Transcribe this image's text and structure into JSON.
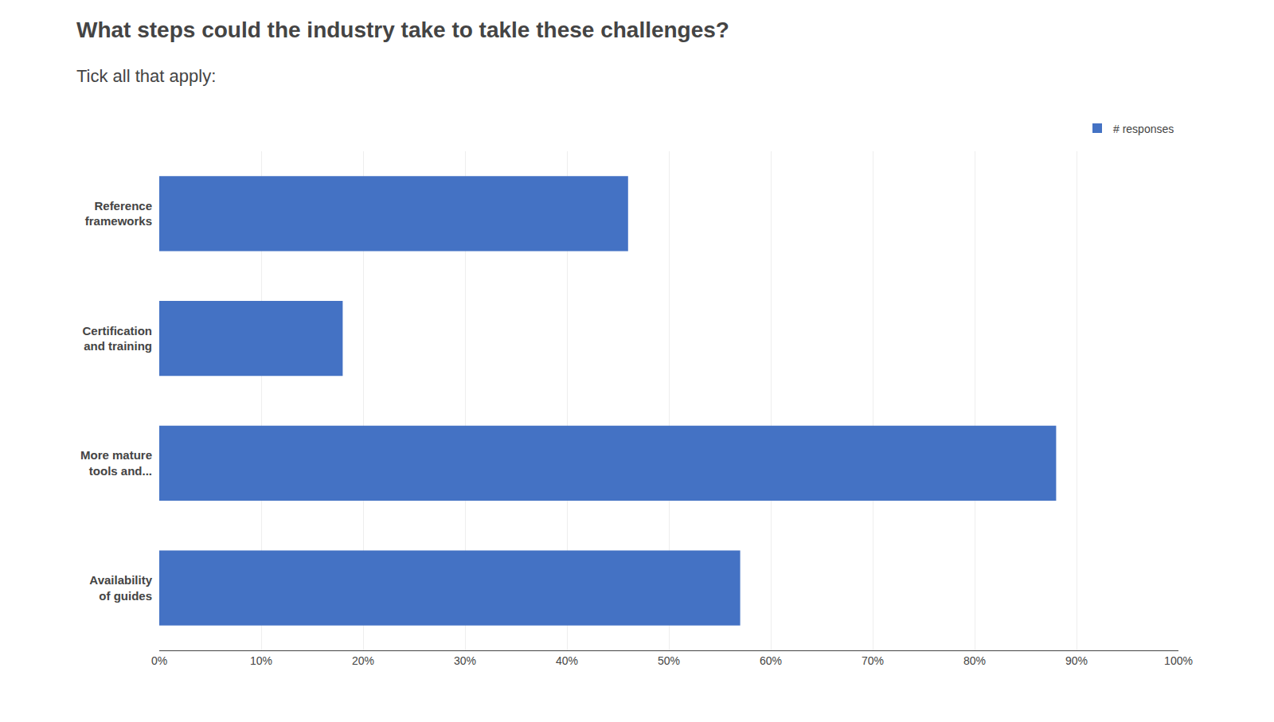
{
  "chart_data": {
    "type": "bar",
    "orientation": "horizontal",
    "title": "What steps could the industry take to takle these challenges?",
    "subtitle": "Tick all that apply:",
    "categories": [
      "Reference\nframeworks",
      "Certification\nand training",
      "More mature\ntools and...",
      "Availability\nof guides"
    ],
    "series": [
      {
        "name": "# responses",
        "color": "#4472C4",
        "values": [
          46,
          18,
          88,
          57
        ]
      }
    ],
    "xlim": [
      0,
      100
    ],
    "xticks": [
      {
        "value": 0,
        "label": "0%"
      },
      {
        "value": 10,
        "label": "10%"
      },
      {
        "value": 20,
        "label": "20%"
      },
      {
        "value": 30,
        "label": "30%"
      },
      {
        "value": 40,
        "label": "40%"
      },
      {
        "value": 50,
        "label": "50%"
      },
      {
        "value": 60,
        "label": "60%"
      },
      {
        "value": 70,
        "label": "70%"
      },
      {
        "value": 80,
        "label": "80%"
      },
      {
        "value": 90,
        "label": "90%"
      },
      {
        "value": 100,
        "label": "100%"
      }
    ],
    "grid": true,
    "legend": "upper right"
  }
}
